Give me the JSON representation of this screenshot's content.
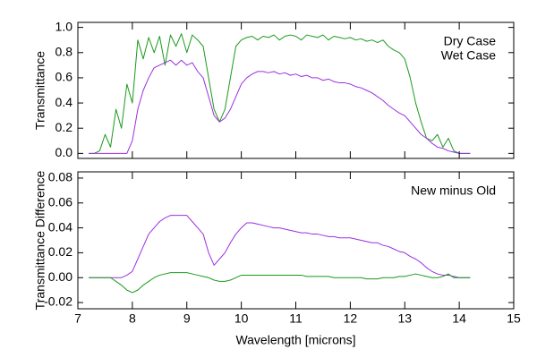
{
  "chart_data": [
    {
      "type": "line",
      "ylabel": "Transmittance",
      "x": [
        7.2,
        7.3,
        7.4,
        7.5,
        7.6,
        7.7,
        7.8,
        7.9,
        8.0,
        8.1,
        8.2,
        8.3,
        8.4,
        8.5,
        8.6,
        8.7,
        8.8,
        8.9,
        9.0,
        9.1,
        9.2,
        9.3,
        9.4,
        9.5,
        9.6,
        9.7,
        9.8,
        9.9,
        10.0,
        10.1,
        10.2,
        10.3,
        10.4,
        10.5,
        10.6,
        10.7,
        10.8,
        10.9,
        11.0,
        11.1,
        11.2,
        11.3,
        11.4,
        11.5,
        11.6,
        11.7,
        11.8,
        11.9,
        12.0,
        12.1,
        12.2,
        12.3,
        12.4,
        12.5,
        12.6,
        12.7,
        12.8,
        12.9,
        13.0,
        13.1,
        13.2,
        13.3,
        13.4,
        13.5,
        13.6,
        13.7,
        13.8,
        13.9,
        14.0,
        14.1,
        14.2
      ],
      "series": [
        {
          "name": "Dry Case",
          "color": "#1c9a1c",
          "values": [
            0,
            0,
            0.02,
            0.15,
            0.05,
            0.35,
            0.2,
            0.55,
            0.4,
            0.9,
            0.75,
            0.92,
            0.8,
            0.93,
            0.7,
            0.94,
            0.85,
            0.95,
            0.8,
            0.94,
            0.9,
            0.85,
            0.6,
            0.35,
            0.25,
            0.35,
            0.6,
            0.85,
            0.9,
            0.92,
            0.93,
            0.9,
            0.93,
            0.92,
            0.94,
            0.9,
            0.93,
            0.94,
            0.93,
            0.9,
            0.94,
            0.93,
            0.92,
            0.94,
            0.9,
            0.93,
            0.92,
            0.91,
            0.92,
            0.9,
            0.91,
            0.89,
            0.9,
            0.88,
            0.9,
            0.85,
            0.82,
            0.8,
            0.75,
            0.6,
            0.4,
            0.25,
            0.12,
            0.1,
            0.15,
            0.05,
            0.12,
            0.02,
            0,
            0,
            0
          ]
        },
        {
          "name": "Wet Case",
          "color": "#9b30e0",
          "values": [
            0,
            0,
            0,
            0,
            0,
            0,
            0,
            0,
            0.1,
            0.35,
            0.5,
            0.6,
            0.68,
            0.7,
            0.72,
            0.74,
            0.7,
            0.74,
            0.7,
            0.72,
            0.65,
            0.6,
            0.45,
            0.3,
            0.25,
            0.28,
            0.35,
            0.45,
            0.55,
            0.6,
            0.63,
            0.65,
            0.65,
            0.64,
            0.65,
            0.63,
            0.64,
            0.62,
            0.63,
            0.61,
            0.62,
            0.6,
            0.6,
            0.58,
            0.59,
            0.57,
            0.56,
            0.56,
            0.55,
            0.53,
            0.52,
            0.5,
            0.48,
            0.45,
            0.42,
            0.38,
            0.35,
            0.32,
            0.3,
            0.25,
            0.2,
            0.15,
            0.12,
            0.08,
            0.05,
            0.04,
            0.02,
            0.01,
            0,
            0,
            0
          ]
        }
      ],
      "xlim": [
        7,
        15
      ],
      "ylim": [
        -0.04,
        1.04
      ],
      "yticks": [
        {
          "value": 0,
          "label": "0.0"
        },
        0.2,
        0.4,
        0.6,
        0.8,
        {
          "value": 1,
          "label": "1.0"
        }
      ],
      "legend": "upper right"
    },
    {
      "type": "line",
      "ylabel": "Transmittance Difference",
      "xlabel": "Wavelength [microns]",
      "annotation": "New minus Old",
      "x": [
        7.2,
        7.3,
        7.4,
        7.5,
        7.6,
        7.7,
        7.8,
        7.9,
        8.0,
        8.1,
        8.2,
        8.3,
        8.4,
        8.5,
        8.6,
        8.7,
        8.8,
        8.9,
        9.0,
        9.1,
        9.2,
        9.3,
        9.4,
        9.5,
        9.6,
        9.7,
        9.8,
        9.9,
        10.0,
        10.1,
        10.2,
        10.3,
        10.4,
        10.5,
        10.6,
        10.7,
        10.8,
        10.9,
        11.0,
        11.1,
        11.2,
        11.3,
        11.4,
        11.5,
        11.6,
        11.7,
        11.8,
        11.9,
        12.0,
        12.1,
        12.2,
        12.3,
        12.4,
        12.5,
        12.6,
        12.7,
        12.8,
        12.9,
        13.0,
        13.1,
        13.2,
        13.3,
        13.4,
        13.5,
        13.6,
        13.7,
        13.8,
        13.9,
        14.0,
        14.1,
        14.2
      ],
      "series": [
        {
          "color": "#9b30e0",
          "values": [
            0,
            0,
            0,
            0,
            0,
            0,
            0,
            0.002,
            0.005,
            0.015,
            0.025,
            0.035,
            0.04,
            0.045,
            0.048,
            0.05,
            0.05,
            0.05,
            0.05,
            0.045,
            0.04,
            0.035,
            0.02,
            0.01,
            0.015,
            0.02,
            0.028,
            0.035,
            0.04,
            0.044,
            0.044,
            0.043,
            0.042,
            0.041,
            0.04,
            0.04,
            0.039,
            0.038,
            0.037,
            0.036,
            0.036,
            0.035,
            0.035,
            0.034,
            0.033,
            0.033,
            0.032,
            0.032,
            0.032,
            0.031,
            0.03,
            0.029,
            0.028,
            0.028,
            0.026,
            0.025,
            0.023,
            0.021,
            0.02,
            0.017,
            0.015,
            0.012,
            0.008,
            0.005,
            0.003,
            0.002,
            0.002,
            0.001,
            0,
            0,
            0
          ]
        },
        {
          "color": "#1c9a1c",
          "values": [
            0,
            0,
            0,
            0,
            0,
            -0.003,
            -0.006,
            -0.01,
            -0.012,
            -0.01,
            -0.006,
            -0.003,
            0,
            0.002,
            0.003,
            0.004,
            0.004,
            0.004,
            0.004,
            0.003,
            0.002,
            0.001,
            0,
            -0.002,
            -0.003,
            -0.003,
            -0.002,
            0,
            0.002,
            0.002,
            0.002,
            0.002,
            0.002,
            0.002,
            0.002,
            0.002,
            0.002,
            0.002,
            0.002,
            0.002,
            0.001,
            0.001,
            0.001,
            0.001,
            0.001,
            0,
            0,
            0,
            0,
            0,
            0,
            -0.001,
            -0.001,
            -0.001,
            0,
            0,
            0,
            0.001,
            0.001,
            0.002,
            0.003,
            0.002,
            0.001,
            0,
            0,
            0.001,
            0.003,
            0,
            0,
            0,
            0
          ]
        }
      ],
      "xlim": [
        7,
        15
      ],
      "ylim": [
        -0.025,
        0.085
      ],
      "xticks": [
        7,
        8,
        9,
        10,
        11,
        12,
        13,
        14,
        15
      ],
      "yticks": [
        -0.02,
        {
          "value": 0,
          "label": "0.00"
        },
        0.02,
        0.04,
        0.06,
        0.08
      ]
    }
  ]
}
